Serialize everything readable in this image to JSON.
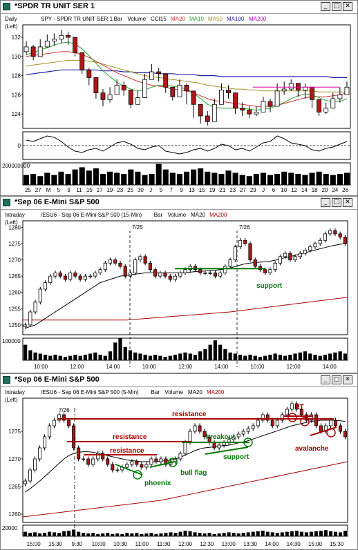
{
  "colors": {
    "ma20": "#d03030",
    "ma10": "#2aa02a",
    "ma50": "#a09020",
    "ma100": "#2020a0",
    "ma200": "#b000b0",
    "price": "#000000",
    "annot_red": "#aa0000",
    "annot_green": "#007a00",
    "pink": "#e000a0"
  },
  "windows": [
    {
      "title": "*SPDR TR UNIT SER 1",
      "header": {
        "left": "Daily",
        "sub": "(Left)",
        "symbol": "SPY - SPDR TR UNIT SER 1",
        "items": [
          "Bar",
          "Volume",
          "CCI15"
        ],
        "mas": [
          {
            "label": "MA20",
            "color": "#d03030"
          },
          {
            "label": "MA10",
            "color": "#2aa02a"
          },
          {
            "label": "MA50",
            "color": "#a09020"
          },
          {
            "label": "MA100",
            "color": "#2020a0"
          },
          {
            "label": "MA200",
            "color": "#b000b0"
          }
        ]
      },
      "volume_label": "200000000",
      "osc_label": "0"
    },
    {
      "title": "*Sep 06 E-Mini S&P 500",
      "header": {
        "left": "Intraday",
        "sub": "(Left)",
        "symbol": "/ESU6 - Sep 06 E-Mini S&P 500 (15-Min)",
        "items": [
          "Bar",
          "Volume"
        ],
        "mas": [
          {
            "label": "MA20",
            "color": "#000000"
          },
          {
            "label": "MA200",
            "color": "#aa0000"
          }
        ]
      },
      "volume_label": "100000",
      "annotations": {
        "date1": "7/25",
        "date2": "7/26",
        "support": "support"
      }
    },
    {
      "title": "*Sep 06 E-Mini S&P 500",
      "header": {
        "left": "Intraday",
        "sub": "(Left)",
        "symbol": "/ESU6 - Sep 06 E-Mini S&P 500 (5-Min)",
        "items": [
          "Bar",
          "Volume"
        ],
        "mas": [
          {
            "label": "MA20",
            "color": "#000000"
          },
          {
            "label": "MA200",
            "color": "#aa0000"
          }
        ]
      },
      "volume_label": "20000",
      "annotations": {
        "date": "7/26",
        "resistance1": "resistance",
        "resistance2": "resistance",
        "resistance3": "resistance",
        "breakout": "breakout",
        "support": "support",
        "bull_flag": "bull flag",
        "phoenix": "phoenix",
        "two_t": "2T",
        "avalanche": "avalanche"
      }
    }
  ],
  "chart_data": [
    {
      "type": "ohlc",
      "title": "SPY - SPDR TR UNIT SER 1",
      "ylim": [
        122.5,
        133.3
      ],
      "y_ticks": [
        124,
        126,
        128,
        130,
        132
      ],
      "x_ticks": [
        "25",
        "27",
        "M",
        "5",
        "9",
        "11",
        "15",
        "17",
        "19",
        "23",
        "25",
        "30",
        "J",
        "5",
        "7",
        "9",
        "13",
        "15",
        "19",
        "21",
        "23",
        "27",
        "29",
        "J",
        "6",
        "10",
        "12",
        "14",
        "18",
        "20",
        "24",
        "26"
      ],
      "close": [
        131.0,
        130.0,
        131.0,
        131.6,
        131.8,
        132.2,
        132.0,
        130.4,
        128.6,
        127.8,
        126.2,
        125.5,
        126.0,
        127.0,
        126.5,
        125.0,
        125.7,
        127.6,
        128.4,
        128.2,
        126.8,
        125.8,
        127.0,
        126.4,
        125.0,
        123.8,
        123.2,
        125.0,
        126.5,
        126.2,
        124.6,
        124.4,
        124.0,
        124.2,
        125.3,
        124.8,
        126.4,
        126.6,
        127.2,
        126.5,
        126.8,
        125.5,
        124.2,
        124.6,
        125.6,
        126.0,
        126.8
      ],
      "high": [
        131.6,
        131.2,
        131.8,
        132.3,
        132.4,
        132.8,
        132.6,
        131.6,
        130.0,
        128.8,
        127.8,
        126.6,
        126.8,
        127.6,
        127.4,
        126.2,
        126.4,
        128.2,
        129.2,
        128.8,
        128.0,
        126.8,
        127.6,
        127.2,
        125.9,
        124.8,
        124.3,
        125.6,
        127.2,
        127.0,
        125.6,
        125.2,
        124.8,
        124.8,
        125.8,
        125.6,
        127.2,
        127.4,
        127.6,
        127.2,
        127.2,
        126.6,
        125.0,
        125.2,
        126.2,
        126.8,
        127.4
      ],
      "low": [
        130.2,
        129.6,
        130.2,
        130.9,
        131.1,
        131.4,
        131.2,
        130.0,
        128.2,
        127.0,
        125.6,
        124.8,
        125.2,
        126.2,
        125.9,
        124.6,
        125.0,
        126.8,
        127.6,
        127.4,
        126.2,
        125.4,
        126.0,
        125.0,
        123.6,
        123.0,
        122.8,
        124.2,
        125.8,
        125.6,
        124.0,
        123.8,
        123.6,
        123.8,
        124.6,
        124.2,
        125.6,
        126.0,
        126.4,
        125.8,
        125.6,
        124.6,
        123.8,
        124.0,
        124.8,
        125.2,
        126.0
      ],
      "ma20": [
        130.0,
        130.1,
        130.2,
        130.3,
        130.4,
        130.5,
        130.5,
        130.4,
        130.2,
        129.9,
        129.5,
        129.1,
        128.7,
        128.3,
        128.0,
        127.7,
        127.4,
        127.2,
        127.0,
        126.9,
        126.8,
        126.6,
        126.5,
        126.4,
        126.2,
        125.9,
        125.6,
        125.4,
        125.3,
        125.2,
        125.1,
        125.0,
        124.9,
        124.8,
        124.8,
        124.8,
        124.9,
        125.1,
        125.3,
        125.5,
        125.7,
        125.8,
        125.8,
        125.8,
        125.9,
        126.0,
        126.2
      ],
      "ma10": [
        130.2,
        130.4,
        130.7,
        130.9,
        131.2,
        131.4,
        131.5,
        131.3,
        130.8,
        130.1,
        129.3,
        128.5,
        127.9,
        127.3,
        126.9,
        126.6,
        126.4,
        126.5,
        126.8,
        127.0,
        127.0,
        126.9,
        126.8,
        126.6,
        126.2,
        125.6,
        125.0,
        124.7,
        124.6,
        124.6,
        124.6,
        124.6,
        124.5,
        124.4,
        124.5,
        124.6,
        124.9,
        125.2,
        125.6,
        125.9,
        126.1,
        126.0,
        125.7,
        125.4,
        125.3,
        125.3,
        125.6
      ],
      "ma50": [
        129.0,
        129.1,
        129.2,
        129.3,
        129.4,
        129.5,
        129.6,
        129.6,
        129.6,
        129.5,
        129.4,
        129.2,
        129.0,
        128.8,
        128.6,
        128.4,
        128.2,
        128.0,
        127.9,
        127.8,
        127.7,
        127.6,
        127.5,
        127.4,
        127.3,
        127.2,
        127.0,
        126.9,
        126.8,
        126.7,
        126.6,
        126.6,
        126.5,
        126.5,
        126.4,
        126.4,
        126.4,
        126.4,
        126.4,
        126.4,
        126.4,
        126.4,
        126.3,
        126.3,
        126.3,
        126.3,
        126.3
      ],
      "ma100": [
        128.1,
        128.2,
        128.3,
        128.4,
        128.5,
        128.6,
        128.6,
        128.6,
        128.6,
        128.6,
        128.6,
        128.5,
        128.5,
        128.5,
        128.4,
        128.4,
        128.3,
        128.3,
        128.3,
        128.2,
        128.2,
        128.2,
        128.1,
        128.1,
        128.1,
        128.0,
        128.0,
        128.0,
        127.9,
        127.9,
        127.9,
        127.9,
        127.9,
        127.9,
        127.9,
        127.9,
        127.9,
        127.9,
        127.9,
        127.9,
        127.9,
        127.9,
        127.9,
        127.9,
        127.8,
        127.8,
        127.8
      ]
    },
    {
      "type": "ohlc",
      "title": "/ESU6 - Sep 06 E-Mini S&P 500 (15-Min)",
      "ylim": [
        1247,
        1282
      ],
      "y_ticks": [
        1250,
        1255,
        1260,
        1265,
        1270,
        1275,
        1280
      ],
      "x_ticks": [
        "10:00",
        "12:00",
        "14:00",
        "10:00",
        "12:00",
        "14:00",
        "10:00",
        "12:00",
        "14:00"
      ],
      "close": [
        1250,
        1254,
        1257,
        1261,
        1263,
        1265,
        1266,
        1265,
        1264,
        1266,
        1265,
        1264,
        1265,
        1265,
        1266,
        1267,
        1269,
        1270,
        1269,
        1268,
        1265,
        1266,
        1270,
        1271,
        1269,
        1267,
        1265,
        1266,
        1265,
        1264,
        1265,
        1266,
        1267,
        1268,
        1267,
        1266,
        1266,
        1266,
        1265,
        1266,
        1268,
        1270,
        1274,
        1276,
        1275,
        1270,
        1268,
        1267,
        1266,
        1267,
        1269,
        1271,
        1272,
        1270,
        1271,
        1272,
        1273,
        1274,
        1275,
        1276,
        1278,
        1279,
        1278,
        1277,
        1275
      ],
      "ma20": [
        1249,
        1249.5,
        1250,
        1251,
        1252,
        1253,
        1254,
        1255,
        1256,
        1257,
        1258,
        1259,
        1260,
        1261,
        1262,
        1263,
        1263.5,
        1264,
        1264.5,
        1265,
        1265.2,
        1265.4,
        1265.6,
        1265.8,
        1266,
        1266,
        1266,
        1266,
        1266,
        1266,
        1266,
        1266,
        1266,
        1266.2,
        1266.4,
        1266.5,
        1266.6,
        1266.7,
        1266.8,
        1267,
        1267.2,
        1267.5,
        1268,
        1268.4,
        1268.8,
        1269,
        1269.2,
        1269.3,
        1269.4,
        1269.6,
        1269.9,
        1270.3,
        1270.7,
        1271,
        1271.4,
        1271.8,
        1272.2,
        1272.6,
        1273,
        1273.4,
        1273.8,
        1274.2,
        1274.5,
        1274.8,
        1275
      ]
    },
    {
      "type": "ohlc",
      "title": "/ESU6 - Sep 06 E-Mini S&P 500 (5-Min)",
      "ylim": [
        1258.5,
        1281
      ],
      "y_ticks": [
        1260,
        1265,
        1270,
        1275
      ],
      "x_ticks": [
        "15:00",
        "15:30",
        "9:30",
        "10:00",
        "10:30",
        "11:00",
        "11:30",
        "12:00",
        "12:30",
        "13:00",
        "13:30",
        "14:00",
        "14:30",
        "15:00",
        "15:30"
      ],
      "close": [
        1266,
        1268,
        1270,
        1272,
        1274,
        1276,
        1277,
        1278,
        1277,
        1276,
        1272,
        1270,
        1270,
        1269,
        1270,
        1271,
        1270,
        1269,
        1268,
        1268,
        1268.5,
        1269,
        1269.5,
        1269,
        1268.5,
        1269,
        1270,
        1269.5,
        1270,
        1269,
        1269.5,
        1270,
        1271,
        1273,
        1275,
        1276,
        1275,
        1274,
        1273,
        1272,
        1272.5,
        1273,
        1273.5,
        1274,
        1274.5,
        1275,
        1275.5,
        1276,
        1277,
        1278,
        1277,
        1276,
        1277,
        1278,
        1279,
        1280,
        1279,
        1278,
        1277,
        1278,
        1276,
        1275,
        1276,
        1277,
        1276,
        1275,
        1274
      ],
      "ma20": [
        1264,
        1264.6,
        1265.3,
        1266,
        1266.8,
        1267.6,
        1268.4,
        1269.2,
        1270,
        1270.6,
        1271,
        1271.2,
        1271.3,
        1271.3,
        1271.2,
        1271,
        1270.8,
        1270.6,
        1270.4,
        1270.2,
        1270,
        1269.8,
        1269.7,
        1269.6,
        1269.5,
        1269.5,
        1269.5,
        1269.5,
        1269.6,
        1269.7,
        1269.8,
        1270,
        1270.3,
        1270.7,
        1271.1,
        1271.5,
        1271.8,
        1272,
        1272.1,
        1272.2,
        1272.3,
        1272.4,
        1272.5,
        1272.7,
        1272.9,
        1273.1,
        1273.3,
        1273.6,
        1273.9,
        1274.2,
        1274.5,
        1274.8,
        1275.1,
        1275.4,
        1275.7,
        1276,
        1276.2,
        1276.4,
        1276.6,
        1276.8,
        1276.9,
        1277,
        1277,
        1277,
        1277,
        1276.9,
        1276.8
      ]
    }
  ]
}
